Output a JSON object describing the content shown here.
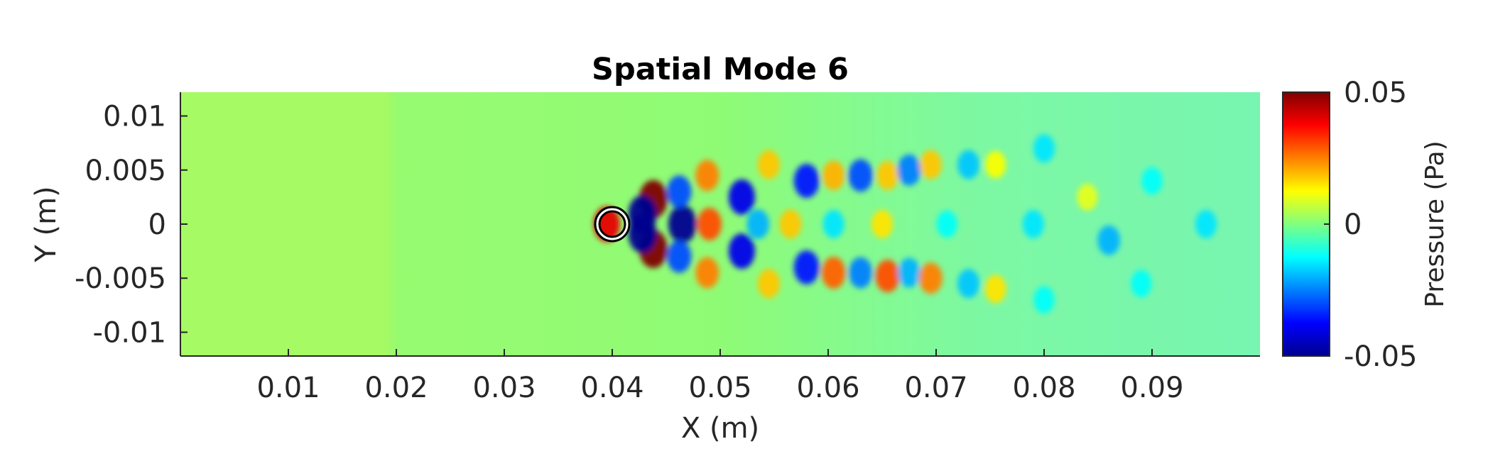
{
  "chart_data": {
    "type": "heatmap",
    "title": "Spatial Mode 6",
    "xlabel": "X (m)",
    "ylabel": "Y (m)",
    "xlim": [
      0,
      0.1
    ],
    "ylim": [
      -0.0122,
      0.0122
    ],
    "x_ticks": [
      0.01,
      0.02,
      0.03,
      0.04,
      0.05,
      0.06,
      0.07,
      0.08,
      0.09
    ],
    "x_tick_labels": [
      "0.01",
      "0.02",
      "0.03",
      "0.04",
      "0.05",
      "0.06",
      "0.07",
      "0.08",
      "0.09"
    ],
    "y_ticks": [
      0.01,
      0.005,
      0,
      -0.005,
      -0.01
    ],
    "y_tick_labels": [
      "0.01",
      "0.005",
      "0",
      "-0.005",
      "-0.01"
    ],
    "colorbar": {
      "label": "Pressure (Pa)",
      "limits": [
        -0.05,
        0.05
      ],
      "ticks": [
        0.05,
        0,
        -0.05
      ],
      "tick_labels": [
        "0.05",
        "0",
        "-0.05"
      ],
      "colormap": "jet"
    },
    "field_base_value": 0.009,
    "cylinder": {
      "center": [
        0.04,
        0
      ],
      "diameter": 0.0025
    },
    "structures": [
      {
        "x": 0.0438,
        "y": 0.0023,
        "value": 0.05
      },
      {
        "x": 0.0438,
        "y": -0.0023,
        "value": 0.05
      },
      {
        "x": 0.0395,
        "y": 0.0,
        "value": 0.04
      },
      {
        "x": 0.0428,
        "y": 0.0009,
        "value": -0.05
      },
      {
        "x": 0.0428,
        "y": -0.0009,
        "value": -0.05
      },
      {
        "x": 0.0465,
        "y": 0.0,
        "value": -0.05
      },
      {
        "x": 0.0462,
        "y": 0.003,
        "value": -0.03
      },
      {
        "x": 0.0462,
        "y": -0.003,
        "value": -0.03
      },
      {
        "x": 0.049,
        "y": 0.0,
        "value": 0.03
      },
      {
        "x": 0.0488,
        "y": 0.0045,
        "value": 0.025
      },
      {
        "x": 0.0488,
        "y": -0.0045,
        "value": 0.025
      },
      {
        "x": 0.052,
        "y": 0.0025,
        "value": -0.04
      },
      {
        "x": 0.052,
        "y": -0.0025,
        "value": -0.04
      },
      {
        "x": 0.0535,
        "y": 0.0,
        "value": -0.02
      },
      {
        "x": 0.0545,
        "y": 0.0055,
        "value": 0.018
      },
      {
        "x": 0.0545,
        "y": -0.0055,
        "value": 0.018
      },
      {
        "x": 0.0565,
        "y": 0.0,
        "value": 0.018
      },
      {
        "x": 0.058,
        "y": 0.004,
        "value": -0.035
      },
      {
        "x": 0.058,
        "y": -0.004,
        "value": -0.035
      },
      {
        "x": 0.0605,
        "y": 0.0,
        "value": -0.015
      },
      {
        "x": 0.0605,
        "y": 0.0045,
        "value": 0.02
      },
      {
        "x": 0.0605,
        "y": -0.0045,
        "value": 0.028
      },
      {
        "x": 0.063,
        "y": 0.0045,
        "value": -0.03
      },
      {
        "x": 0.063,
        "y": -0.0045,
        "value": -0.025
      },
      {
        "x": 0.065,
        "y": 0.0,
        "value": 0.015
      },
      {
        "x": 0.0655,
        "y": 0.0045,
        "value": 0.018
      },
      {
        "x": 0.0655,
        "y": -0.0048,
        "value": 0.03
      },
      {
        "x": 0.0675,
        "y": 0.005,
        "value": -0.025
      },
      {
        "x": 0.0675,
        "y": -0.0045,
        "value": -0.02
      },
      {
        "x": 0.0695,
        "y": 0.0055,
        "value": 0.018
      },
      {
        "x": 0.0695,
        "y": -0.005,
        "value": 0.025
      },
      {
        "x": 0.071,
        "y": 0.0,
        "value": -0.012
      },
      {
        "x": 0.073,
        "y": 0.0055,
        "value": -0.018
      },
      {
        "x": 0.073,
        "y": -0.0055,
        "value": -0.018
      },
      {
        "x": 0.0755,
        "y": 0.0055,
        "value": 0.012
      },
      {
        "x": 0.0755,
        "y": -0.006,
        "value": 0.015
      },
      {
        "x": 0.079,
        "y": 0.0,
        "value": -0.015
      },
      {
        "x": 0.08,
        "y": 0.007,
        "value": -0.015
      },
      {
        "x": 0.08,
        "y": -0.007,
        "value": -0.012
      },
      {
        "x": 0.084,
        "y": 0.0025,
        "value": 0.01
      },
      {
        "x": 0.086,
        "y": -0.0015,
        "value": -0.02
      },
      {
        "x": 0.089,
        "y": -0.0055,
        "value": -0.012
      },
      {
        "x": 0.09,
        "y": 0.004,
        "value": -0.012
      },
      {
        "x": 0.095,
        "y": 0.0,
        "value": -0.015
      }
    ]
  }
}
